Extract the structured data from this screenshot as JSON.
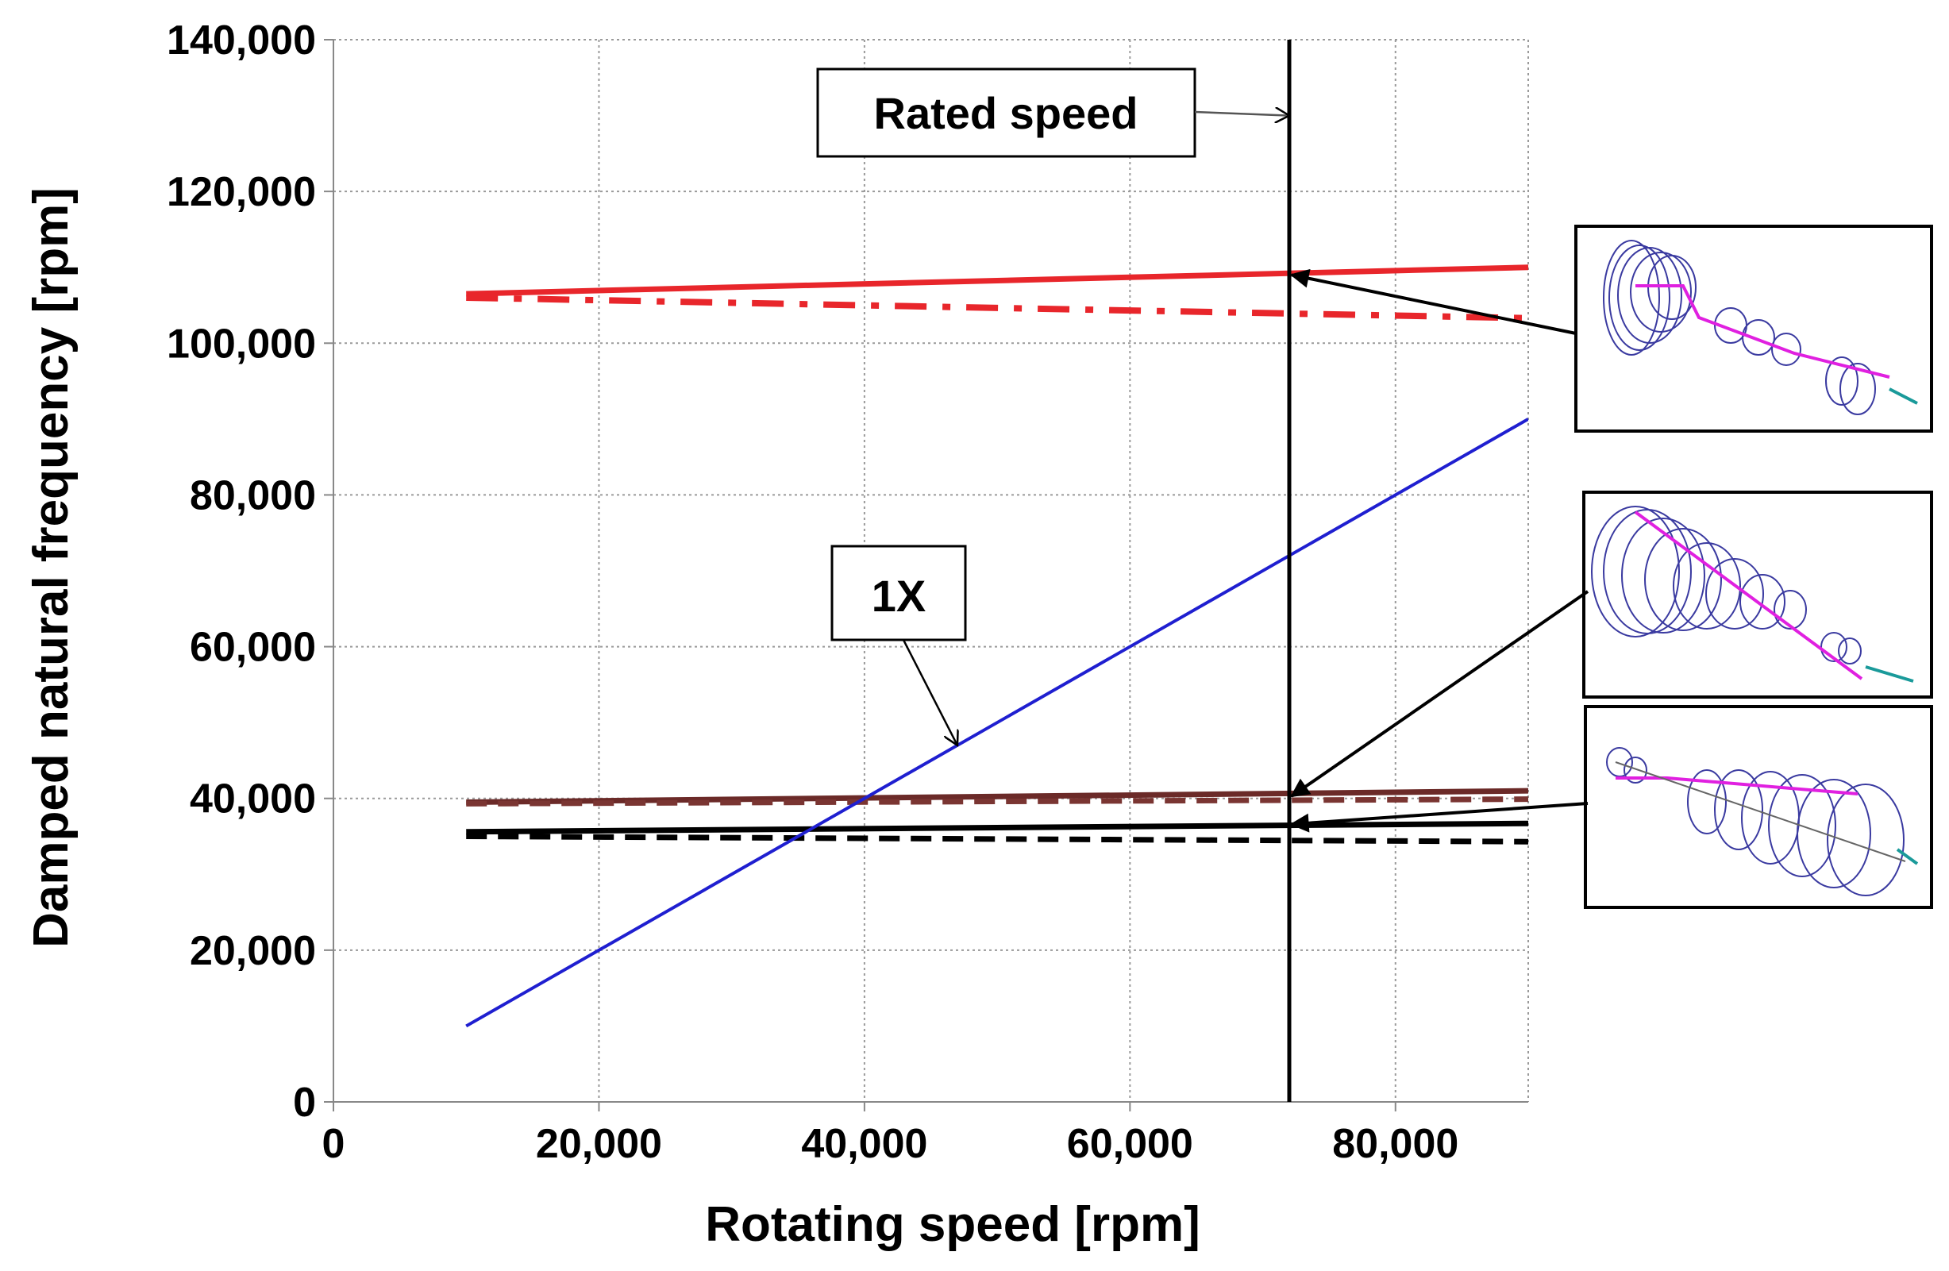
{
  "chart_data": {
    "type": "line",
    "title": "",
    "xlabel": "Rotating speed [rpm]",
    "ylabel": "Damped natural frequency [rpm]",
    "xlim": [
      0,
      90000
    ],
    "ylim": [
      0,
      140000
    ],
    "xticks": [
      0,
      20000,
      40000,
      60000,
      80000
    ],
    "xtick_labels": [
      "0",
      "20,000",
      "40,000",
      "60,000",
      "80,000"
    ],
    "yticks": [
      0,
      20000,
      40000,
      60000,
      80000,
      100000,
      120000,
      140000
    ],
    "ytick_labels": [
      "0",
      "20,000",
      "40,000",
      "60,000",
      "80,000",
      "100,000",
      "120,000",
      "140,000"
    ],
    "grid": true,
    "series": [
      {
        "style": "solid",
        "color": "#e8262b",
        "width": 7,
        "x": [
          10000,
          90000
        ],
        "y": [
          106500,
          110000
        ]
      },
      {
        "style": "dashdot",
        "color": "#e8262b",
        "width": 8,
        "x": [
          10000,
          90000
        ],
        "y": [
          106000,
          103300
        ]
      },
      {
        "style": "solid",
        "color": "#6b2a28",
        "width": 7,
        "x": [
          10000,
          90000
        ],
        "y": [
          39500,
          41000
        ]
      },
      {
        "style": "dashed",
        "color": "#7a3532",
        "width": 7,
        "x": [
          10000,
          90000
        ],
        "y": [
          39300,
          39900
        ]
      },
      {
        "style": "solid",
        "color": "#000000",
        "width": 7,
        "x": [
          10000,
          90000
        ],
        "y": [
          35600,
          36700
        ]
      },
      {
        "style": "dashed",
        "color": "#000000",
        "width": 7,
        "x": [
          10000,
          90000
        ],
        "y": [
          35000,
          34300
        ]
      },
      {
        "style": "solid",
        "color": "#1f1fd0",
        "width": 4,
        "x": [
          10000,
          90000
        ],
        "y": [
          10000,
          90000
        ]
      }
    ],
    "vertical_line": {
      "x": 72000,
      "color": "#000000"
    },
    "annotations": [
      {
        "text": "Rated speed",
        "target": [
          72000,
          130000
        ]
      },
      {
        "text": "1X",
        "target": [
          47000,
          47000
        ]
      }
    ],
    "mode_shape_insets": [
      {
        "target": [
          72000,
          109000
        ],
        "description": "mode shape 1"
      },
      {
        "target": [
          72000,
          40300
        ],
        "description": "mode shape 2"
      },
      {
        "target": [
          72000,
          36600
        ],
        "description": "mode shape 3"
      }
    ]
  }
}
